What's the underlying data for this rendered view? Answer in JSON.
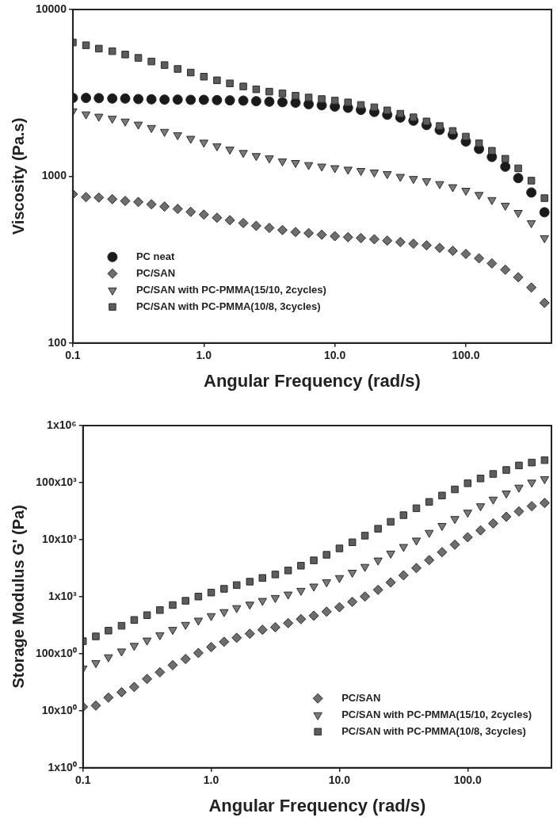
{
  "chart_data": [
    {
      "type": "scatter",
      "xlabel": "Angular Frequency (rad/s)",
      "ylabel": "Viscosity (Pa.s)",
      "log": "xy",
      "grid": false,
      "legend": "bottom left",
      "xlim": [
        0.1,
        450
      ],
      "ylim": [
        100,
        10000
      ],
      "xticks": [
        0.1,
        {
          "value": 1,
          "label": "1.0"
        },
        {
          "value": 10,
          "label": "10.0"
        },
        {
          "value": 100,
          "label": "100.0"
        }
      ],
      "yticks": [
        100,
        1000,
        10000
      ],
      "x": [
        0.1,
        0.126,
        0.158,
        0.2,
        0.251,
        0.316,
        0.398,
        0.501,
        0.631,
        0.794,
        1,
        1.26,
        1.58,
        2,
        2.51,
        3.16,
        3.98,
        5.01,
        6.31,
        7.94,
        10,
        12.6,
        15.8,
        20,
        25.1,
        31.6,
        39.8,
        50.1,
        63.1,
        79.4,
        100,
        126,
        158,
        200,
        251,
        316,
        398
      ],
      "series": [
        {
          "name": "PC neat",
          "color": "#1a1a1a",
          "marker": "circle",
          "values": [
            2950,
            2950,
            2940,
            2925,
            2925,
            2904,
            2894,
            2883,
            2883,
            2873,
            2873,
            2862,
            2852,
            2842,
            2821,
            2801,
            2781,
            2761,
            2704,
            2666,
            2619,
            2573,
            2501,
            2431,
            2338,
            2249,
            2154,
            2028,
            1896,
            1772,
            1616,
            1458,
            1305,
            1141,
            975,
            799,
            608
          ]
        },
        {
          "name": "PC/SAN",
          "color": "#6e6e6e",
          "marker": "diamond",
          "values": [
            780,
            750,
            745,
            729,
            711,
            701,
            679,
            658,
            637,
            612,
            589,
            564,
            545,
            524,
            504,
            490,
            476,
            463,
            456,
            446,
            437,
            431,
            426,
            419,
            411,
            403,
            394,
            385,
            372,
            357,
            342,
            322,
            300,
            275,
            248,
            215,
            174
          ]
        },
        {
          "name": "PC/SAN with PC-PMMA(15/10, 2cycles)",
          "color": "#7a7a7a",
          "marker": "triangle",
          "values": [
            2457,
            2354,
            2280,
            2217,
            2132,
            2043,
            1951,
            1849,
            1766,
            1680,
            1593,
            1516,
            1447,
            1382,
            1324,
            1282,
            1229,
            1203,
            1169,
            1145,
            1120,
            1097,
            1078,
            1055,
            1032,
            993,
            965,
            935,
            899,
            861,
            820,
            774,
            721,
            667,
            604,
            524,
            426
          ]
        },
        {
          "name": "PC/SAN with PC-PMMA(10/8, 3cycles)",
          "color": "#5c5c5c",
          "marker": "square",
          "values": [
            6346,
            6103,
            5827,
            5623,
            5370,
            5127,
            4878,
            4642,
            4400,
            4187,
            3956,
            3763,
            3606,
            3456,
            3323,
            3218,
            3140,
            3041,
            2966,
            2904,
            2842,
            2773,
            2676,
            2592,
            2484,
            2371,
            2256,
            2132,
            2000,
            1869,
            1729,
            1576,
            1421,
            1273,
            1116,
            941,
            739
          ]
        }
      ]
    },
    {
      "type": "scatter",
      "xlabel": "Angular Frequency (rad/s)",
      "ylabel": "Storage Modulus G' (Pa)",
      "log": "xy",
      "grid": false,
      "legend": "bottom right",
      "xlim": [
        0.1,
        450
      ],
      "ylim": [
        1,
        1000000
      ],
      "xticks": [
        0.1,
        {
          "value": 1,
          "label": "1.0"
        },
        {
          "value": 10,
          "label": "10.0"
        },
        {
          "value": 100,
          "label": "100.0"
        }
      ],
      "yticks": [
        {
          "value": 1,
          "label": "1x10⁰"
        },
        {
          "value": 10,
          "label": "10x10⁰"
        },
        {
          "value": 100,
          "label": "100x10⁰"
        },
        {
          "value": 1000,
          "label": "1x10³"
        },
        {
          "value": 10000,
          "label": "10x10³"
        },
        {
          "value": 100000,
          "label": "100x10³"
        },
        {
          "value": 1000000,
          "label": "1x10⁶"
        }
      ],
      "x": [
        0.1,
        0.126,
        0.158,
        0.2,
        0.251,
        0.316,
        0.398,
        0.501,
        0.631,
        0.794,
        1,
        1.26,
        1.58,
        2,
        2.51,
        3.16,
        3.98,
        5.01,
        6.31,
        7.94,
        10,
        12.6,
        15.8,
        20,
        25.1,
        31.6,
        39.8,
        50.1,
        63.1,
        79.4,
        100,
        126,
        158,
        200,
        251,
        316,
        398
      ],
      "series": [
        {
          "name": "PC/SAN",
          "color": "#6e6e6e",
          "marker": "diamond",
          "values": [
            11.7,
            12.3,
            17,
            21.1,
            26.1,
            36.1,
            47.2,
            63,
            80.7,
            103,
            131,
            162,
            190,
            224,
            263,
            292,
            344,
            404,
            464,
            545,
            655,
            811,
            1005,
            1315,
            1776,
            2373,
            3171,
            4375,
            6038,
            8156,
            11020,
            14560,
            19250,
            25180,
            31200,
            38680,
            43990
          ]
        },
        {
          "name": "PC/SAN with PC-PMMA(15/10, 2cycles)",
          "color": "#7a7a7a",
          "marker": "triangle",
          "values": [
            55.4,
            68.7,
            87,
            110,
            138,
            171,
            212,
            263,
            322,
            382,
            459,
            540,
            634,
            729,
            847,
            953,
            1095,
            1273,
            1512,
            1795,
            2132,
            2642,
            3345,
            4329,
            5722,
            7483,
            9683,
            13220,
            17470,
            23100,
            29890,
            38680,
            50580,
            64750,
            81990,
            100500,
            115600
          ]
        },
        {
          "name": "PC/SAN with PC-PMMA(10/8, 3cycles)",
          "color": "#5c5c5c",
          "marker": "square",
          "values": [
            166,
            201,
            254,
            309,
            391,
            474,
            582,
            713,
            847,
            1005,
            1181,
            1373,
            1595,
            1834,
            2132,
            2451,
            2879,
            3493,
            4329,
            5424,
            7018,
            8983,
            11750,
            15530,
            20530,
            26850,
            35490,
            45920,
            59410,
            76040,
            97340,
            118100,
            141800,
            166500,
            199900,
            224900,
            247700
          ]
        }
      ]
    }
  ]
}
